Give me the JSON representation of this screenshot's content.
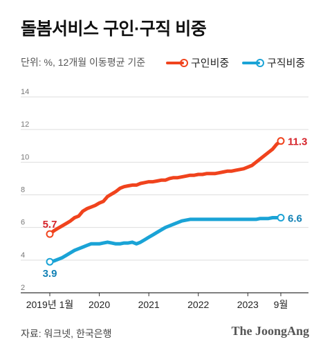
{
  "header": {
    "title": "돌봄서비스 구인·구직 비중",
    "unit_note": "단위: %, 12개월 이동평균 기준"
  },
  "footer": {
    "source": "자료: 워크넷, 한국은행",
    "brand": "The JoongAng"
  },
  "chart_data": {
    "type": "line",
    "title": "돌봄서비스 구인·구직 비중",
    "ylim": [
      2,
      14
    ],
    "yticks": [
      2,
      4,
      6,
      8,
      10,
      12,
      14
    ],
    "x_tick_labels": [
      {
        "label": "2019년 1월",
        "index": 0
      },
      {
        "label": "2020",
        "index": 12
      },
      {
        "label": "2021",
        "index": 24
      },
      {
        "label": "2022",
        "index": 36
      },
      {
        "label": "2023",
        "index": 48
      },
      {
        "label": "9월",
        "index": 56
      }
    ],
    "legend_position": "top-right",
    "grid": true,
    "series": [
      {
        "name": "구인비중",
        "color": "#f0431d",
        "label_color": "#d5232a",
        "start_label": "5.7",
        "end_label": "11.3",
        "values": [
          5.6,
          5.8,
          5.95,
          6.1,
          6.25,
          6.4,
          6.6,
          6.7,
          7.0,
          7.15,
          7.25,
          7.35,
          7.5,
          7.6,
          7.9,
          8.05,
          8.2,
          8.4,
          8.5,
          8.55,
          8.6,
          8.6,
          8.7,
          8.75,
          8.8,
          8.8,
          8.85,
          8.9,
          8.9,
          9.0,
          9.05,
          9.05,
          9.1,
          9.15,
          9.2,
          9.2,
          9.25,
          9.25,
          9.3,
          9.3,
          9.3,
          9.35,
          9.4,
          9.45,
          9.45,
          9.5,
          9.55,
          9.6,
          9.7,
          9.8,
          10.0,
          10.2,
          10.4,
          10.6,
          10.8,
          11.1,
          11.3
        ]
      },
      {
        "name": "구직비중",
        "color": "#1aa3d6",
        "label_color": "#1281b5",
        "start_label": "3.9",
        "end_label": "6.6",
        "values": [
          3.9,
          3.95,
          4.05,
          4.15,
          4.3,
          4.45,
          4.6,
          4.7,
          4.8,
          4.9,
          5.0,
          5.0,
          5.0,
          5.05,
          5.1,
          5.05,
          5.0,
          5.0,
          5.05,
          5.05,
          5.1,
          5.0,
          5.1,
          5.25,
          5.4,
          5.55,
          5.7,
          5.85,
          6.0,
          6.1,
          6.2,
          6.3,
          6.4,
          6.45,
          6.5,
          6.5,
          6.5,
          6.5,
          6.5,
          6.5,
          6.5,
          6.5,
          6.5,
          6.5,
          6.5,
          6.5,
          6.5,
          6.5,
          6.5,
          6.5,
          6.5,
          6.55,
          6.55,
          6.55,
          6.6,
          6.6,
          6.6
        ]
      }
    ]
  }
}
